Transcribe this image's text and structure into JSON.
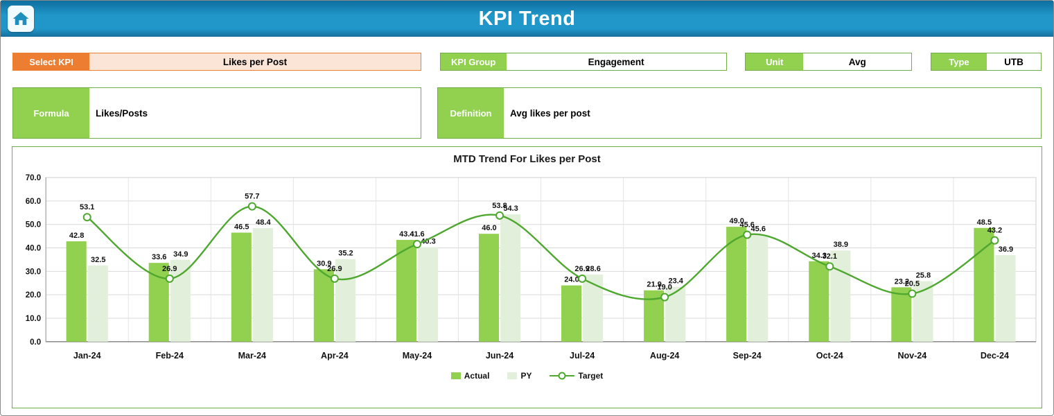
{
  "header": {
    "title": "KPI Trend",
    "home_icon": "home-icon"
  },
  "controls": {
    "select_kpi": {
      "label": "Select KPI",
      "value": "Likes per Post"
    },
    "kpi_group": {
      "label": "KPI Group",
      "value": "Engagement"
    },
    "unit": {
      "label": "Unit",
      "value": "Avg"
    },
    "type": {
      "label": "Type",
      "value": "UTB"
    },
    "formula": {
      "label": "Formula",
      "value": "Likes/Posts"
    },
    "definition": {
      "label": "Definition",
      "value": "Avg likes per post"
    }
  },
  "colors": {
    "header_blue": "#2196C9",
    "orange": "#ED7D31",
    "orange_light": "#FBE5D6",
    "label_green": "#92D050",
    "border_green": "#70AD47",
    "actual": "#92D050",
    "py": "#E2EFDA",
    "target": "#4EA72E"
  },
  "chart_data": {
    "type": "bar",
    "title": "MTD Trend For Likes per Post",
    "categories": [
      "Jan-24",
      "Feb-24",
      "Mar-24",
      "Apr-24",
      "May-24",
      "Jun-24",
      "Jul-24",
      "Aug-24",
      "Sep-24",
      "Oct-24",
      "Nov-24",
      "Dec-24"
    ],
    "series": [
      {
        "name": "Actual",
        "type": "bar",
        "values": [
          42.8,
          33.6,
          46.5,
          30.9,
          43.4,
          46.0,
          24.0,
          21.9,
          49.0,
          34.3,
          23.2,
          48.5
        ]
      },
      {
        "name": "PY",
        "type": "bar",
        "values": [
          32.5,
          34.9,
          48.4,
          35.2,
          40.3,
          54.3,
          28.6,
          23.4,
          45.6,
          38.9,
          25.8,
          36.9
        ]
      },
      {
        "name": "Target",
        "type": "line",
        "values": [
          53.1,
          26.9,
          57.7,
          26.9,
          41.6,
          53.8,
          26.9,
          19.0,
          45.6,
          32.1,
          20.5,
          43.2
        ]
      }
    ],
    "xlabel": "",
    "ylabel": "",
    "ylim": [
      0,
      70
    ],
    "ytick_step": 10,
    "grid": true,
    "legend_position": "bottom",
    "data_labels": true
  }
}
